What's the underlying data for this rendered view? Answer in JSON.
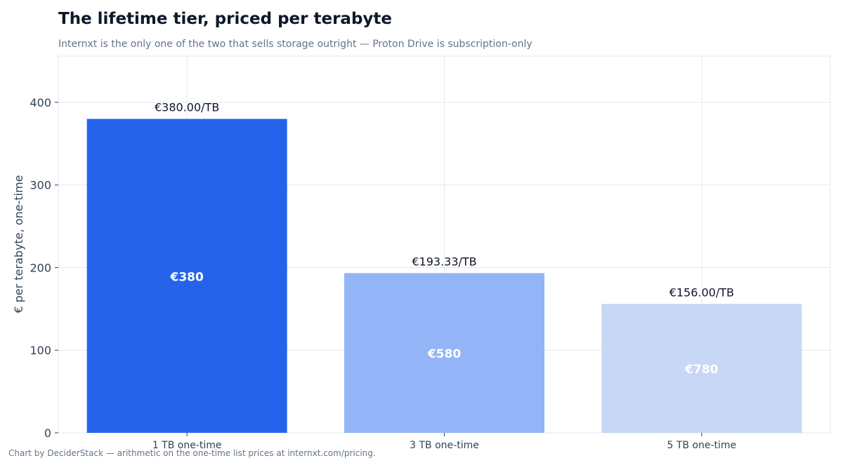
{
  "header": {
    "title": "The lifetime tier, priced per terabyte",
    "subtitle": "Internxt is the only one of the two that sells storage outright — Proton Drive is subscription-only"
  },
  "footer": {
    "note": "Chart by DeciderStack — arithmetic on the one-time list prices at internxt.com/pricing."
  },
  "chart_data": {
    "type": "bar",
    "title": "The lifetime tier, priced per terabyte",
    "subtitle": "Internxt is the only one of the two that sells storage outright — Proton Drive is subscription-only",
    "xlabel": "",
    "ylabel": "€ per terabyte, one-time",
    "categories": [
      "1 TB one-time",
      "3 TB one-time",
      "5 TB one-time"
    ],
    "values": [
      380.0,
      193.33,
      156.0
    ],
    "value_labels": [
      "€380.00/TB",
      "€193.33/TB",
      "€156.00/TB"
    ],
    "inner_labels": [
      "€380",
      "€580",
      "€780"
    ],
    "colors": [
      "#2563eb",
      "#93b4f7",
      "#c8d7f5"
    ],
    "ylim": [
      0,
      456
    ],
    "yticks": [
      0,
      100,
      200,
      300,
      400
    ],
    "grid": true,
    "legend": "none"
  }
}
